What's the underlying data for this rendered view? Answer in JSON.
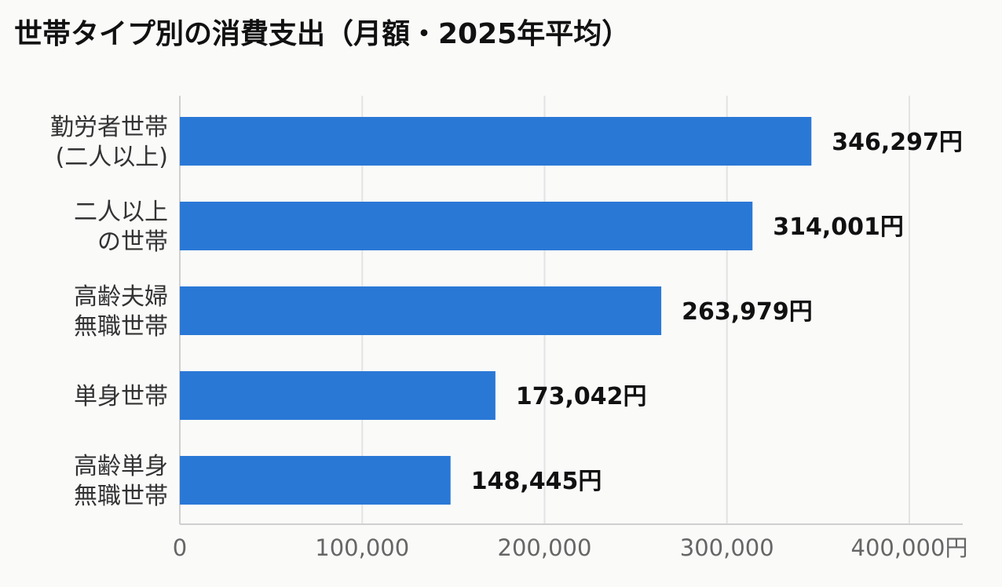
{
  "chart_data": {
    "type": "bar",
    "orientation": "horizontal",
    "title": "世帯タイプ別の消費支出（月額・2025年平均）",
    "categories": [
      [
        "勤労者世帯",
        "(二人以上)"
      ],
      [
        "二人以上",
        "の世帯"
      ],
      [
        "高齢夫婦",
        "無職世帯"
      ],
      [
        "単身世帯"
      ],
      [
        "高齢単身",
        "無職世帯"
      ]
    ],
    "values": [
      346297,
      314001,
      263979,
      173042,
      148445
    ],
    "value_labels": [
      "346,297円",
      "314,001円",
      "263,979円",
      "173,042円",
      "148,445円"
    ],
    "xlim": [
      0,
      430000
    ],
    "x_ticks": [
      0,
      100000,
      200000,
      300000,
      400000
    ],
    "x_tick_labels": [
      "0",
      "100,000",
      "200,000",
      "300,000",
      "400,000円"
    ],
    "grid": true,
    "bar_color": "#2a78d6"
  }
}
